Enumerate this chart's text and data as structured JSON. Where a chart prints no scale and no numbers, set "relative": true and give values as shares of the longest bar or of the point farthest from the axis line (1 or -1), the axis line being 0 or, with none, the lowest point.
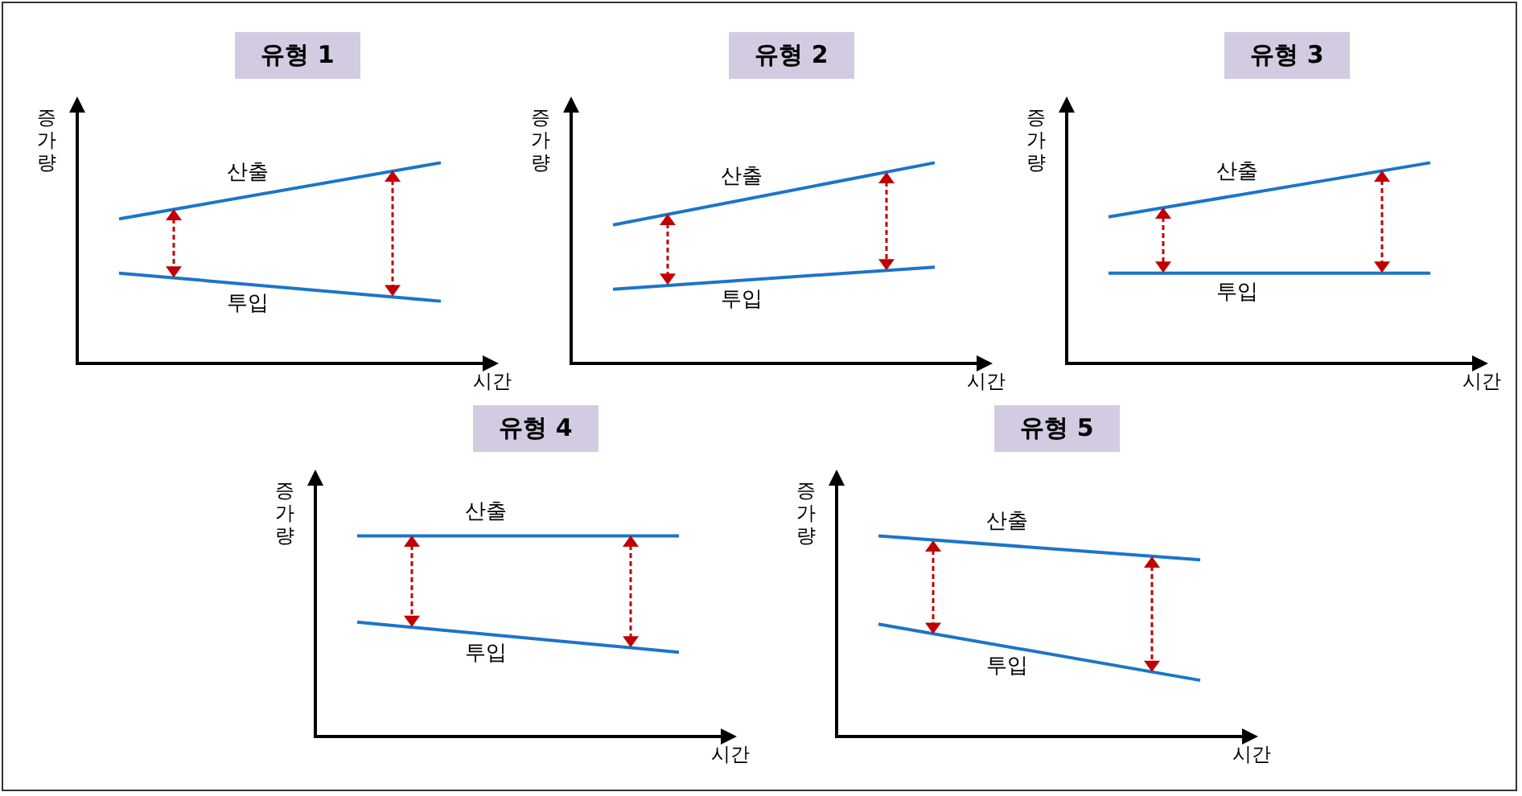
{
  "chart_data": [
    {
      "type": "line",
      "title": "유형 1",
      "xlabel": "시간",
      "ylabel": "증가량",
      "relative": true,
      "marker": "none",
      "categories": [
        null,
        null
      ],
      "series": [
        {
          "name": "산출",
          "color": "#1c75c8",
          "values": [
            0.72,
            1
          ]
        },
        {
          "name": "투입",
          "color": "#1c75c8",
          "values": [
            0.45,
            0.31
          ]
        }
      ]
    },
    {
      "type": "line",
      "title": "유형 2",
      "xlabel": "시간",
      "ylabel": "증가량",
      "relative": true,
      "marker": "none",
      "categories": [
        null,
        null
      ],
      "series": [
        {
          "name": "산출",
          "color": "#1c75c8",
          "values": [
            0.69,
            1
          ]
        },
        {
          "name": "투입",
          "color": "#1c75c8",
          "values": [
            0.37,
            0.48
          ]
        }
      ]
    },
    {
      "type": "line",
      "title": "유형 3",
      "xlabel": "시간",
      "ylabel": "증가량",
      "relative": true,
      "marker": "none",
      "categories": [
        null,
        null
      ],
      "series": [
        {
          "name": "산출",
          "color": "#1c75c8",
          "values": [
            0.73,
            1
          ]
        },
        {
          "name": "투입",
          "color": "#1c75c8",
          "values": [
            0.45,
            0.45
          ]
        }
      ]
    },
    {
      "type": "line",
      "title": "유형 4",
      "xlabel": "시간",
      "ylabel": "증가량",
      "relative": true,
      "marker": "none",
      "categories": [
        null,
        null
      ],
      "series": [
        {
          "name": "산출",
          "color": "#1c75c8",
          "values": [
            1,
            1
          ]
        },
        {
          "name": "투입",
          "color": "#1c75c8",
          "values": [
            0.57,
            0.42
          ]
        }
      ]
    },
    {
      "type": "line",
      "title": "유형 5",
      "xlabel": "시간",
      "ylabel": "증가량",
      "relative": true,
      "marker": "none",
      "categories": [
        null,
        null
      ],
      "series": [
        {
          "name": "산출",
          "color": "#1c75c8",
          "values": [
            1,
            0.88
          ]
        },
        {
          "name": "투입",
          "color": "#1c75c8",
          "values": [
            0.56,
            0.28
          ]
        }
      ]
    }
  ]
}
